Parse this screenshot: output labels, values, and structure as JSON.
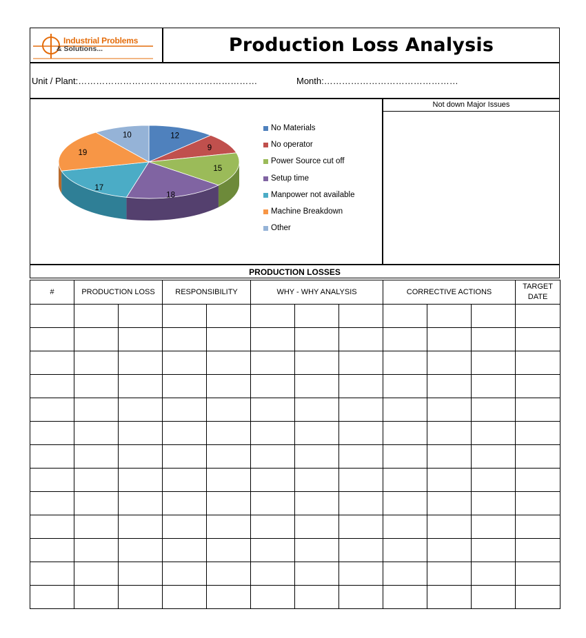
{
  "header": {
    "logo_line1": "Industrial Problems",
    "logo_line2": "& Solutions...",
    "title": "Production Loss Analysis"
  },
  "info": {
    "unit_label": "Unit / Plant:……………………………………………………",
    "month_label": "Month:………………………………………"
  },
  "issues": {
    "heading": "Not down Major Issues"
  },
  "chart_data": {
    "type": "pie",
    "categories": [
      "No Materials",
      "No operator",
      "Power Source cut off",
      "Setup time",
      "Manpower not available",
      "Machine Breakdown",
      "Other"
    ],
    "values": [
      12,
      9,
      15,
      18,
      17,
      19,
      10
    ],
    "colors": [
      "#4f81bd",
      "#c0504d",
      "#9bbb59",
      "#8064a2",
      "#4bacc6",
      "#f79646",
      "#95b3d7"
    ],
    "side_colors": [
      "#2f5b8f",
      "#8e3330",
      "#6d8a3a",
      "#54406e",
      "#2f7f96",
      "#b96a2c",
      "#6b87ad"
    ],
    "legend_position": "right"
  },
  "losses": {
    "heading": "PRODUCTION LOSSES",
    "columns": [
      "#",
      "PRODUCTION LOSS",
      "RESPONSIBILITY",
      "WHY - WHY ANALYSIS",
      "CORRECTIVE ACTIONS",
      "TARGET DATE"
    ]
  }
}
